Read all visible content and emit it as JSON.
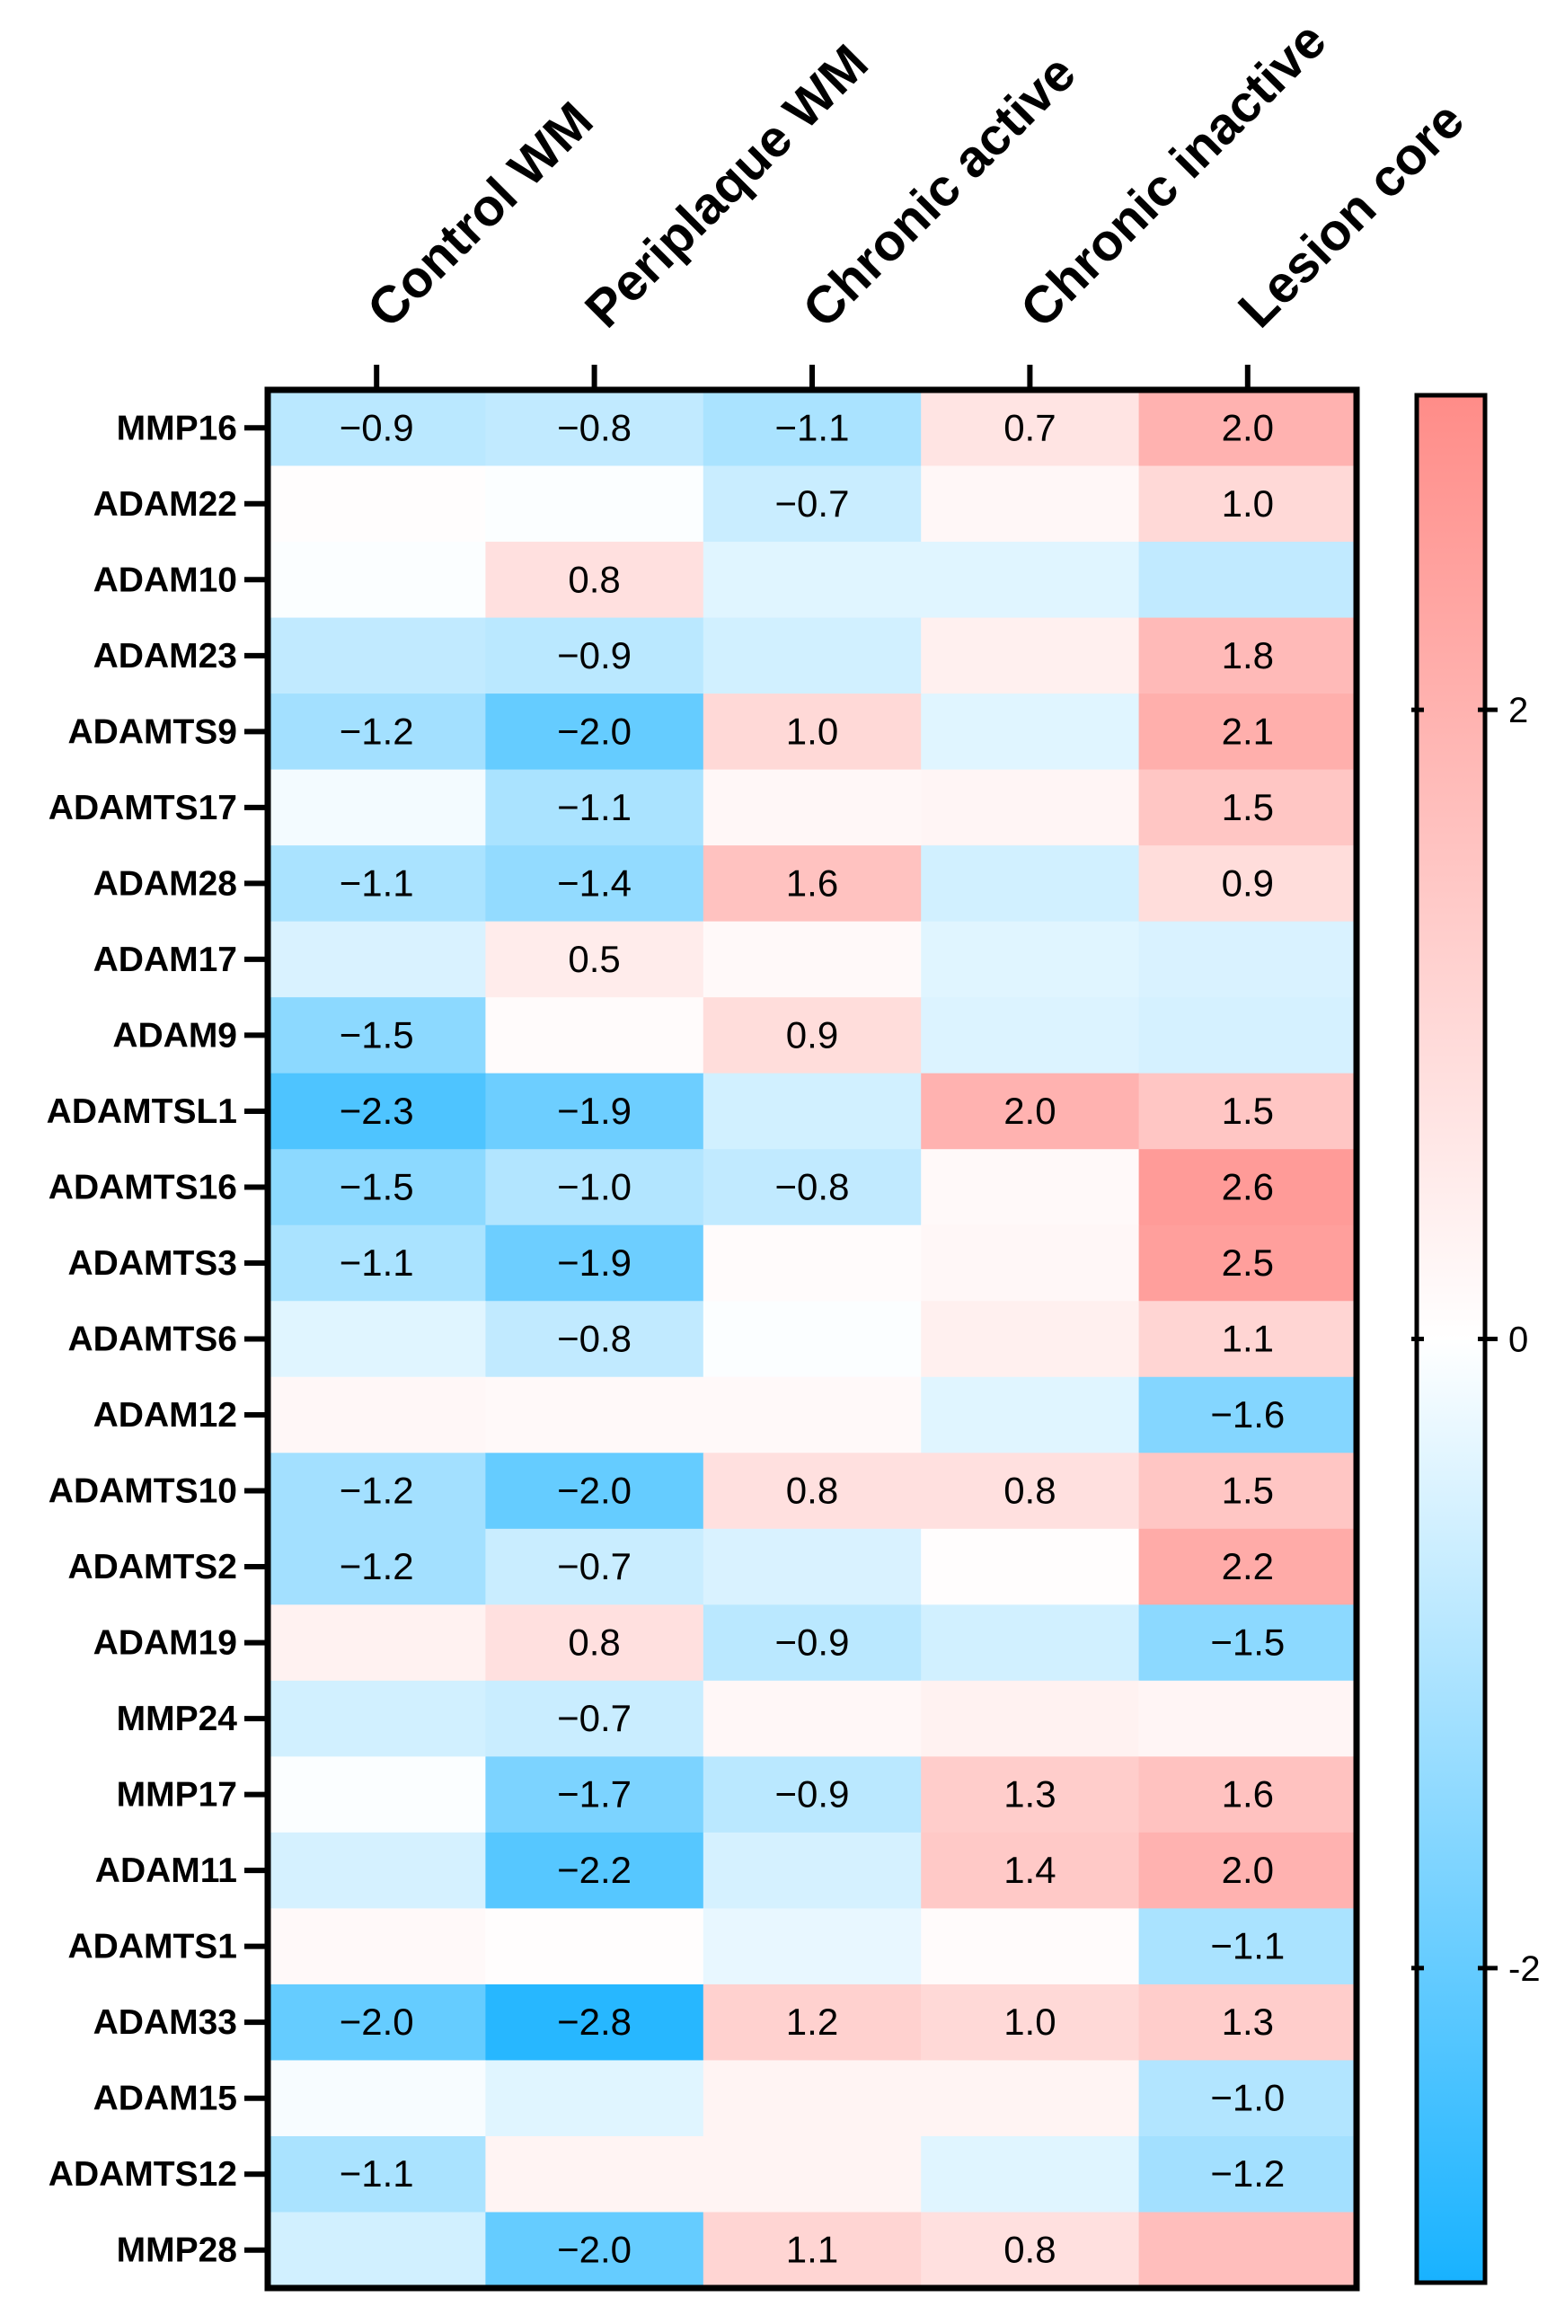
{
  "chart_data": {
    "type": "heatmap",
    "title": "",
    "columns": [
      "Control WM",
      "Periplaque WM",
      "Chronic active",
      "Chronic inactive",
      "Lesion core"
    ],
    "rows": [
      "MMP16",
      "ADAM22",
      "ADAM10",
      "ADAM23",
      "ADAMTS9",
      "ADAMTS17",
      "ADAM28",
      "ADAM17",
      "ADAM9",
      "ADAMTSL1",
      "ADAMTS16",
      "ADAMTS3",
      "ADAMTS6",
      "ADAM12",
      "ADAMTS10",
      "ADAMTS2",
      "ADAM19",
      "MMP24",
      "MMP17",
      "ADAM11",
      "ADAMTS1",
      "ADAM33",
      "ADAM15",
      "ADAMTS12",
      "MMP28"
    ],
    "values": [
      [
        -0.9,
        -0.8,
        -1.1,
        0.7,
        2.0
      ],
      [
        0.05,
        -0.05,
        -0.7,
        0.2,
        1.0
      ],
      [
        -0.05,
        0.8,
        -0.4,
        -0.4,
        -0.8
      ],
      [
        -0.8,
        -0.9,
        -0.6,
        0.4,
        1.8
      ],
      [
        -1.2,
        -2.0,
        1.0,
        -0.4,
        2.1
      ],
      [
        -0.15,
        -1.1,
        0.2,
        0.25,
        1.5
      ],
      [
        -1.1,
        -1.4,
        1.6,
        -0.6,
        0.9
      ],
      [
        -0.5,
        0.5,
        0.15,
        -0.4,
        -0.5
      ],
      [
        -1.5,
        0.1,
        0.9,
        -0.45,
        -0.55
      ],
      [
        -2.3,
        -1.9,
        -0.6,
        2.0,
        1.5
      ],
      [
        -1.5,
        -1.0,
        -0.8,
        0.15,
        2.6
      ],
      [
        -1.1,
        -1.9,
        0.1,
        0.2,
        2.5
      ],
      [
        -0.4,
        -0.8,
        -0.05,
        0.4,
        1.1
      ],
      [
        0.2,
        0.15,
        0.15,
        -0.4,
        -1.6
      ],
      [
        -1.2,
        -2.0,
        0.8,
        0.8,
        1.5
      ],
      [
        -1.2,
        -0.7,
        -0.5,
        0.05,
        2.2
      ],
      [
        0.35,
        0.8,
        -0.9,
        -0.6,
        -1.5
      ],
      [
        -0.6,
        -0.7,
        0.2,
        0.35,
        0.25
      ],
      [
        -0.05,
        -1.7,
        -0.9,
        1.3,
        1.6
      ],
      [
        -0.55,
        -2.2,
        -0.55,
        1.4,
        2.0
      ],
      [
        0.15,
        0.05,
        -0.3,
        0.1,
        -1.1
      ],
      [
        -2.0,
        -2.8,
        1.2,
        1.0,
        1.3
      ],
      [
        -0.1,
        -0.4,
        0.3,
        0.3,
        -1.0
      ],
      [
        -1.1,
        0.3,
        0.3,
        -0.4,
        -1.2
      ],
      [
        -0.6,
        -2.0,
        1.1,
        0.8,
        1.7
      ]
    ],
    "cell_labels": [
      [
        "−0.9",
        "−0.8",
        "−1.1",
        "0.7",
        "2.0"
      ],
      [
        "",
        "",
        "−0.7",
        "",
        "1.0"
      ],
      [
        "",
        "0.8",
        "",
        "",
        ""
      ],
      [
        "",
        "−0.9",
        "",
        "",
        "1.8"
      ],
      [
        "−1.2",
        "−2.0",
        "1.0",
        "",
        "2.1"
      ],
      [
        "",
        "−1.1",
        "",
        "",
        "1.5"
      ],
      [
        "−1.1",
        "−1.4",
        "1.6",
        "",
        "0.9"
      ],
      [
        "",
        "0.5",
        "",
        "",
        ""
      ],
      [
        "−1.5",
        "",
        "0.9",
        "",
        ""
      ],
      [
        "−2.3",
        "−1.9",
        "",
        "2.0",
        "1.5"
      ],
      [
        "−1.5",
        "−1.0",
        "−0.8",
        "",
        "2.6"
      ],
      [
        "−1.1",
        "−1.9",
        "",
        "",
        "2.5"
      ],
      [
        "",
        "−0.8",
        "",
        "",
        "1.1"
      ],
      [
        "",
        "",
        "",
        "",
        "−1.6"
      ],
      [
        "−1.2",
        "−2.0",
        "0.8",
        "0.8",
        "1.5"
      ],
      [
        "−1.2",
        "−0.7",
        "",
        "",
        "2.2"
      ],
      [
        "",
        "0.8",
        "−0.9",
        "",
        "−1.5"
      ],
      [
        "",
        "−0.7",
        "",
        "",
        ""
      ],
      [
        "",
        "−1.7",
        "−0.9",
        "1.3",
        "1.6"
      ],
      [
        "",
        "−2.2",
        "",
        "1.4",
        "2.0"
      ],
      [
        "",
        "",
        "",
        "",
        "−1.1"
      ],
      [
        "−2.0",
        "−2.8",
        "1.2",
        "1.0",
        "1.3"
      ],
      [
        "",
        "",
        "",
        "",
        "−1.0"
      ],
      [
        "−1.1",
        "",
        "",
        "",
        "−1.2"
      ],
      [
        "",
        "−2.0",
        "1.1",
        "0.8",
        ""
      ]
    ],
    "color_scale": {
      "min": -3,
      "max": 3,
      "low_color": "#18b2ff",
      "mid_color": "#ffffff",
      "high_color": "#ff8c88",
      "ticks": [
        2,
        0,
        -2
      ],
      "tick_labels": [
        "2",
        "0",
        "-2"
      ]
    },
    "xlabel": "",
    "ylabel": "",
    "legend": "colorbar right"
  }
}
